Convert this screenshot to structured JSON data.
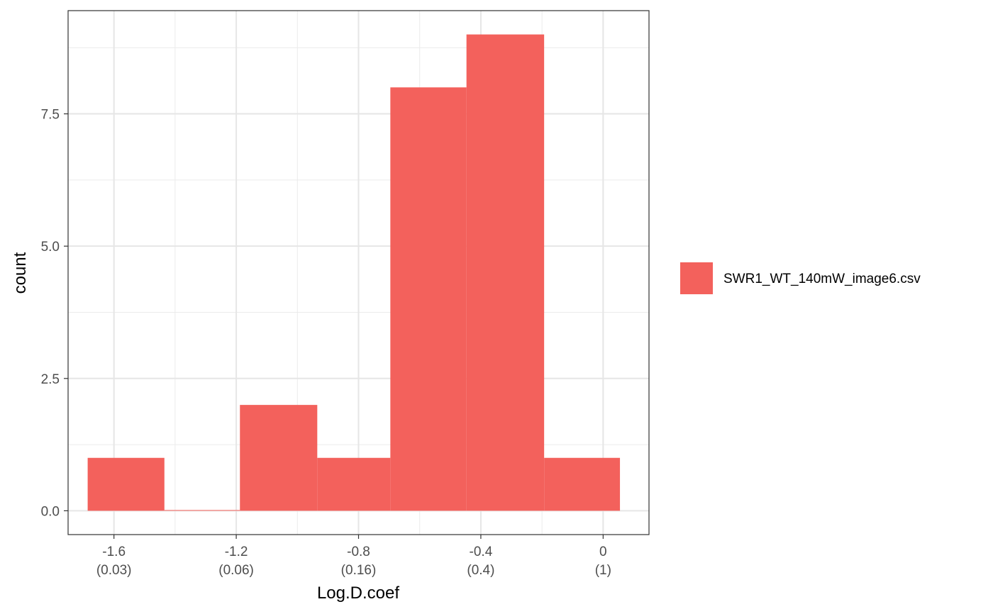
{
  "chart_data": {
    "type": "bar",
    "subtype": "histogram",
    "xlabel": "Log.D.coef",
    "ylabel": "count",
    "x_range": [
      -1.75,
      0.15
    ],
    "y_range": [
      -0.45,
      9.45
    ],
    "x_ticks": [
      {
        "value": -1.6,
        "label": "-1.6",
        "sublabel": "(0.03)"
      },
      {
        "value": -1.2,
        "label": "-1.2",
        "sublabel": "(0.06)"
      },
      {
        "value": -0.8,
        "label": "-0.8",
        "sublabel": "(0.16)"
      },
      {
        "value": -0.4,
        "label": "-0.4",
        "sublabel": "(0.4)"
      },
      {
        "value": 0,
        "label": "0",
        "sublabel": "(1)"
      }
    ],
    "y_ticks": [
      {
        "value": 0,
        "label": "0.0"
      },
      {
        "value": 2.5,
        "label": "2.5"
      },
      {
        "value": 5,
        "label": "5.0"
      },
      {
        "value": 7.5,
        "label": "7.5"
      }
    ],
    "bins": [
      {
        "x0": -1.686,
        "x1": -1.435,
        "count": 1
      },
      {
        "x0": -1.435,
        "x1": -1.188,
        "count": 0
      },
      {
        "x0": -1.188,
        "x1": -0.935,
        "count": 2
      },
      {
        "x0": -0.935,
        "x1": -0.696,
        "count": 1
      },
      {
        "x0": -0.696,
        "x1": -0.447,
        "count": 8
      },
      {
        "x0": -0.447,
        "x1": -0.193,
        "count": 9
      },
      {
        "x0": -0.193,
        "x1": 0.055,
        "count": 1
      }
    ],
    "grid": true,
    "legend_position": "right",
    "series": [
      {
        "name": "SWR1_WT_140mW_image6.csv",
        "color": "#f3615c"
      }
    ]
  }
}
